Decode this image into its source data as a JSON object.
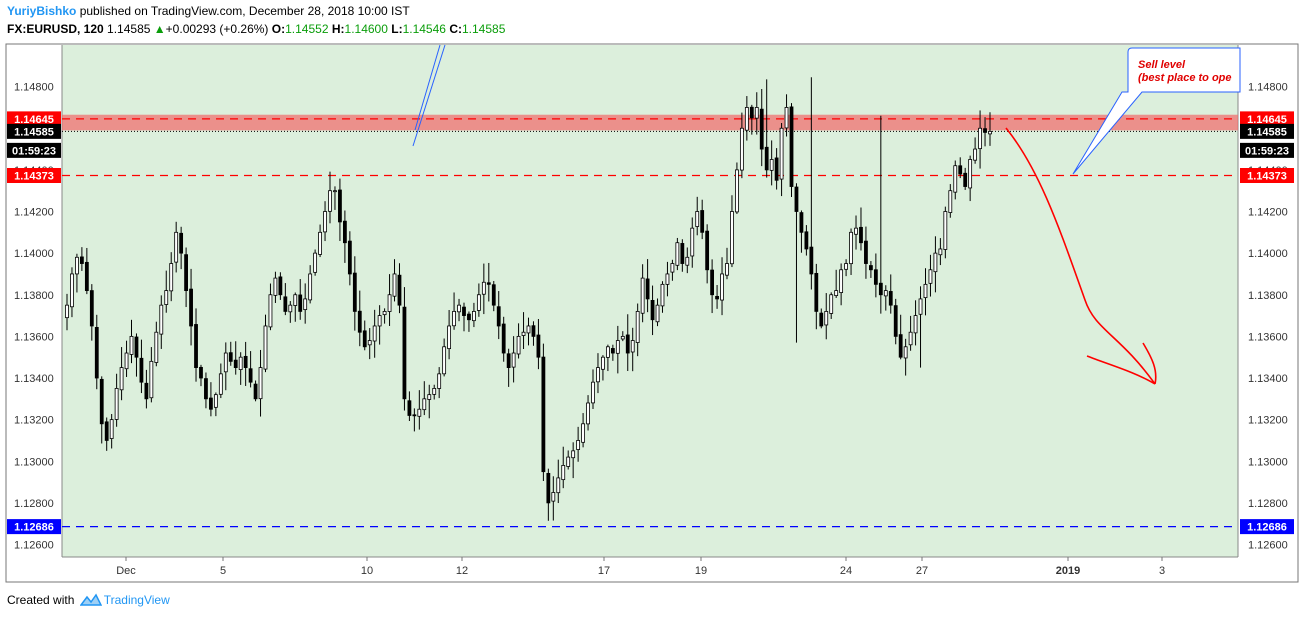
{
  "header": {
    "author": "YuriyBishko",
    "published": "published on TradingView.com, December 28, 2018 10:00 IST",
    "symbol": "FX:EURUSD, 120",
    "last": "1.14585",
    "change": "+0.00293 (+0.26%)",
    "o_label": "O:",
    "o_value": "1.14552",
    "h_label": "H:",
    "h_value": "1.14600",
    "l_label": "L:",
    "l_value": "1.14546",
    "c_label": "C:",
    "c_value": "1.14585"
  },
  "footer": {
    "created_with": "Created with",
    "brand": "TradingView"
  },
  "colors": {
    "background": "#dcefdc",
    "resistance_zone": "#f07070",
    "red_level": "#ff0000",
    "blue_level": "#0000ff",
    "last_price": "#000000",
    "candle": "#000000",
    "annotation_arrow": "#ff0000",
    "callout_line": "#2962ff"
  },
  "chart_data": {
    "type": "candlestick",
    "title": "FX:EURUSD, 120",
    "ylim": [
      1.1254,
      1.15
    ],
    "y_ticks": [
      "1.12600",
      "1.12800",
      "1.13000",
      "1.13200",
      "1.13400",
      "1.13600",
      "1.13800",
      "1.14000",
      "1.14200",
      "1.14400",
      "1.14600",
      "1.14800"
    ],
    "x_ticks": [
      "Dec",
      "5",
      "10",
      "12",
      "17",
      "19",
      "24",
      "27",
      "2019",
      "3"
    ],
    "levels": [
      {
        "value": "1.14645",
        "label": "1.14645",
        "color": "#ff0000",
        "style": "dashed"
      },
      {
        "value": "1.14585",
        "label": "1.14585",
        "color": "#000000",
        "style": "dotted"
      },
      {
        "value": "1.14373",
        "label": "1.14373",
        "color": "#ff0000",
        "style": "dashed"
      },
      {
        "value": "1.12686",
        "label": "1.12686",
        "color": "#0000ff",
        "style": "dashed"
      }
    ],
    "countdown": "01:59:23",
    "zone": {
      "from": 1.1459,
      "to": 1.14665
    },
    "annotation": {
      "text1": "Sell level",
      "text2": "(best place to ope"
    },
    "close_path": [
      1.1375,
      1.139,
      1.1398,
      1.1395,
      1.1382,
      1.1365,
      1.134,
      1.1318,
      1.131,
      1.132,
      1.1335,
      1.1345,
      1.1352,
      1.136,
      1.135,
      1.1338,
      1.133,
      1.1348,
      1.1362,
      1.1375,
      1.1382,
      1.1395,
      1.141,
      1.14,
      1.1382,
      1.1365,
      1.1345,
      1.134,
      1.133,
      1.1325,
      1.1332,
      1.1342,
      1.1352,
      1.1348,
      1.1345,
      1.135,
      1.1345,
      1.1338,
      1.133,
      1.1345,
      1.1365,
      1.138,
      1.1388,
      1.138,
      1.1372,
      1.1375,
      1.138,
      1.1372,
      1.1378,
      1.139,
      1.14,
      1.141,
      1.142,
      1.143,
      1.143,
      1.1415,
      1.1405,
      1.139,
      1.1372,
      1.1362,
      1.1355,
      1.1358,
      1.1365,
      1.137,
      1.1372,
      1.138,
      1.139,
      1.1375,
      1.133,
      1.1322,
      1.1322,
      1.1325,
      1.133,
      1.1332,
      1.1335,
      1.1342,
      1.1355,
      1.1365,
      1.1372,
      1.1375,
      1.137,
      1.1368,
      1.1372,
      1.138,
      1.1386,
      1.1385,
      1.1375,
      1.1365,
      1.1352,
      1.1345,
      1.1352,
      1.136,
      1.1362,
      1.1365,
      1.136,
      1.135,
      1.1295,
      1.128,
      1.1285,
      1.1292,
      1.1298,
      1.1302,
      1.1305,
      1.131,
      1.1318,
      1.1328,
      1.1338,
      1.1345,
      1.135,
      1.1355,
      1.1352,
      1.1358,
      1.136,
      1.1352,
      1.1358,
      1.1372,
      1.1388,
      1.1378,
      1.1368,
      1.1375,
      1.1385,
      1.139,
      1.1395,
      1.1405,
      1.1395,
      1.1398,
      1.1412,
      1.142,
      1.141,
      1.1392,
      1.138,
      1.1378,
      1.139,
      1.1395,
      1.142,
      1.144,
      1.146,
      1.147,
      1.1465,
      1.147,
      1.145,
      1.144,
      1.1445,
      1.1435,
      1.146,
      1.147,
      1.1432,
      1.142,
      1.141,
      1.1402,
      1.139,
      1.1372,
      1.1365,
      1.1372,
      1.138,
      1.1382,
      1.1392,
      1.1395,
      1.141,
      1.1412,
      1.1405,
      1.1395,
      1.1392,
      1.1385,
      1.138,
      1.1382,
      1.1375,
      1.136,
      1.135,
      1.1355,
      1.1362,
      1.137,
      1.1378,
      1.1385,
      1.1392,
      1.14,
      1.1402,
      1.142,
      1.143,
      1.1442,
      1.1438,
      1.1432,
      1.1445,
      1.145,
      1.146,
      1.1458,
      1.14585
    ],
    "high_points": [
      [
        141,
        1.14835
      ],
      [
        150,
        1.14845
      ],
      [
        164,
        1.1466
      ]
    ],
    "low_points": [
      [
        97,
        1.12714
      ],
      [
        147,
        1.1357
      ],
      [
        172,
        1.1345
      ]
    ]
  }
}
